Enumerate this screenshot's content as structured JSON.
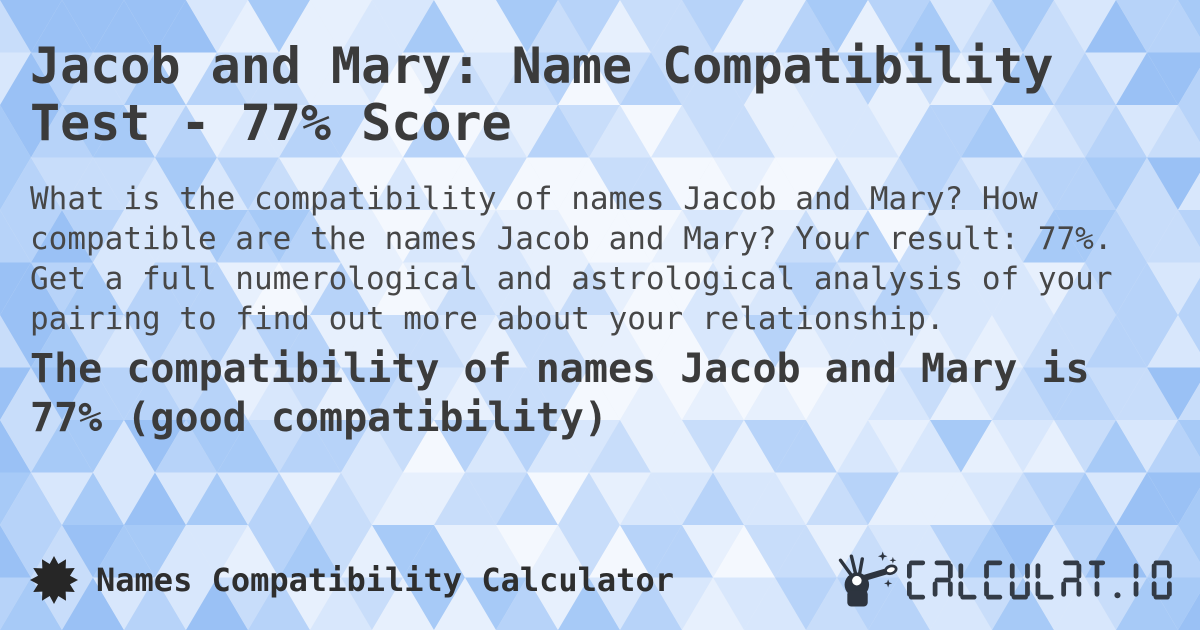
{
  "title": "Jacob and Mary: Name Compatibility\nTest - 77% Score",
  "description": "What is the compatibility of names Jacob and Mary? How\ncompatible are the names Jacob and Mary? Your result: 77%.\nGet a full numerological and astrological analysis of your\npairing to find out more about your relationship.",
  "result_heading": "The compatibility of names Jacob and Mary is\n77% (good compatibility)",
  "names": [
    "Jacob",
    "Mary"
  ],
  "score_percent": "77%",
  "compatibility_level": "good compatibility",
  "footer": {
    "brand": "Names Compatibility Calculator",
    "brand_icon": "starburst-icon",
    "logo_text": "CALCULAT.IO",
    "logo_icon": "magic-wand-icon"
  },
  "colors": {
    "title": "#3b3b3b",
    "body": "#474747",
    "footer_text": "#2e2e2e",
    "logo": "#333b46",
    "background_palette": [
      "#ffffff",
      "#f4f8fe",
      "#e7f0fd",
      "#d8e7fc",
      "#c8ddfa",
      "#b7d3f9",
      "#a7caf7",
      "#9ac1f5"
    ]
  }
}
